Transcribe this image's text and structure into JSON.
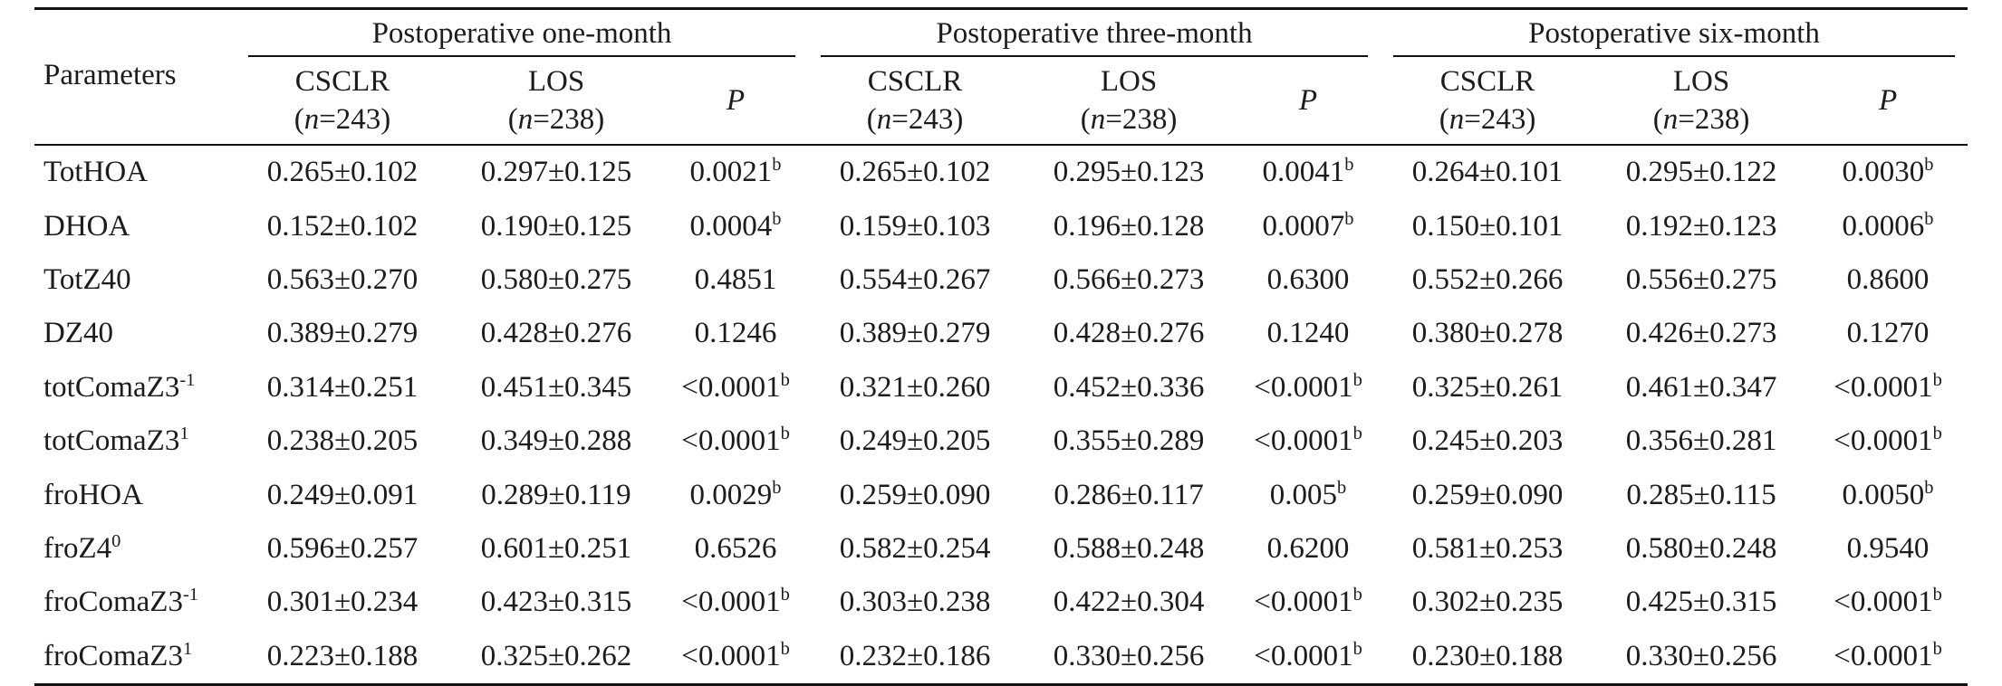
{
  "table": {
    "param_header": "Parameters",
    "periods": [
      {
        "title": "Postoperative one-month"
      },
      {
        "title": "Postoperative three-month"
      },
      {
        "title": "Postoperative six-month"
      }
    ],
    "sub_headers": {
      "cs_name": "CSCLR",
      "cs_n_open": "(",
      "n_letter": "n",
      "cs_n_value": "=243)",
      "los_name": "LOS",
      "los_n_value": "=238)",
      "p_label": "P"
    },
    "rows": [
      {
        "param": "TotHOA",
        "param_sup": "",
        "cells": [
          [
            "0.265±0.102",
            "0.297±0.125",
            "0.0021",
            "b"
          ],
          [
            "0.265±0.102",
            "0.295±0.123",
            "0.0041",
            "b"
          ],
          [
            "0.264±0.101",
            "0.295±0.122",
            "0.0030",
            "b"
          ]
        ]
      },
      {
        "param": "DHOA",
        "param_sup": "",
        "cells": [
          [
            "0.152±0.102",
            "0.190±0.125",
            "0.0004",
            "b"
          ],
          [
            "0.159±0.103",
            "0.196±0.128",
            "0.0007",
            "b"
          ],
          [
            "0.150±0.101",
            "0.192±0.123",
            "0.0006",
            "b"
          ]
        ]
      },
      {
        "param": "TotZ40",
        "param_sup": "",
        "cells": [
          [
            "0.563±0.270",
            "0.580±0.275",
            "0.4851",
            ""
          ],
          [
            "0.554±0.267",
            "0.566±0.273",
            "0.6300",
            ""
          ],
          [
            "0.552±0.266",
            "0.556±0.275",
            "0.8600",
            ""
          ]
        ]
      },
      {
        "param": "DZ40",
        "param_sup": "",
        "cells": [
          [
            "0.389±0.279",
            "0.428±0.276",
            "0.1246",
            ""
          ],
          [
            "0.389±0.279",
            "0.428±0.276",
            "0.1240",
            ""
          ],
          [
            "0.380±0.278",
            "0.426±0.273",
            "0.1270",
            ""
          ]
        ]
      },
      {
        "param": "totComaZ3",
        "param_sup": "-1",
        "cells": [
          [
            "0.314±0.251",
            "0.451±0.345",
            "<0.0001",
            "b"
          ],
          [
            "0.321±0.260",
            "0.452±0.336",
            "<0.0001",
            "b"
          ],
          [
            "0.325±0.261",
            "0.461±0.347",
            "<0.0001",
            "b"
          ]
        ]
      },
      {
        "param": "totComaZ3",
        "param_sup": "1",
        "cells": [
          [
            "0.238±0.205",
            "0.349±0.288",
            "<0.0001",
            "b"
          ],
          [
            "0.249±0.205",
            "0.355±0.289",
            "<0.0001",
            "b"
          ],
          [
            "0.245±0.203",
            "0.356±0.281",
            "<0.0001",
            "b"
          ]
        ]
      },
      {
        "param": "froHOA",
        "param_sup": "",
        "cells": [
          [
            "0.249±0.091",
            "0.289±0.119",
            "0.0029",
            "b"
          ],
          [
            "0.259±0.090",
            "0.286±0.117",
            "0.005",
            "b"
          ],
          [
            "0.259±0.090",
            "0.285±0.115",
            "0.0050",
            "b"
          ]
        ]
      },
      {
        "param": "froZ4",
        "param_sup": "0",
        "cells": [
          [
            "0.596±0.257",
            "0.601±0.251",
            "0.6526",
            ""
          ],
          [
            "0.582±0.254",
            "0.588±0.248",
            "0.6200",
            ""
          ],
          [
            "0.581±0.253",
            "0.580±0.248",
            "0.9540",
            ""
          ]
        ]
      },
      {
        "param": "froComaZ3",
        "param_sup": "-1",
        "cells": [
          [
            "0.301±0.234",
            "0.423±0.315",
            "<0.0001",
            "b"
          ],
          [
            "0.303±0.238",
            "0.422±0.304",
            "<0.0001",
            "b"
          ],
          [
            "0.302±0.235",
            "0.425±0.315",
            "<0.0001",
            "b"
          ]
        ]
      },
      {
        "param": "froComaZ3",
        "param_sup": "1",
        "cells": [
          [
            "0.223±0.188",
            "0.325±0.262",
            "<0.0001",
            "b"
          ],
          [
            "0.232±0.186",
            "0.330±0.256",
            "<0.0001",
            "b"
          ],
          [
            "0.230±0.188",
            "0.330±0.256",
            "<0.0001",
            "b"
          ]
        ]
      }
    ]
  }
}
